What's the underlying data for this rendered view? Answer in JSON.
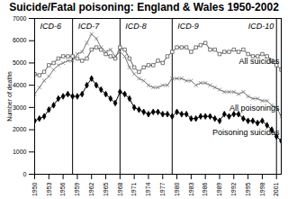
{
  "chart_data": {
    "type": "line",
    "title": "Suicide/Fatal poisoning: England & Wales 1950-2002",
    "y_label": "Number of deaths",
    "x": [
      1950,
      1951,
      1952,
      1953,
      1954,
      1955,
      1956,
      1957,
      1958,
      1959,
      1960,
      1961,
      1962,
      1963,
      1964,
      1965,
      1966,
      1967,
      1968,
      1969,
      1970,
      1971,
      1972,
      1973,
      1974,
      1975,
      1976,
      1977,
      1978,
      1979,
      1980,
      1981,
      1982,
      1983,
      1984,
      1985,
      1986,
      1987,
      1988,
      1989,
      1990,
      1991,
      1992,
      1993,
      1994,
      1995,
      1996,
      1997,
      1998,
      1999,
      2000,
      2001,
      2002
    ],
    "series": [
      {
        "name": "All suicides",
        "color": "#555555",
        "marker": "open square",
        "values": [
          4500,
          4450,
          4600,
          4900,
          5000,
          5200,
          5300,
          5300,
          5300,
          5200,
          5100,
          5200,
          5600,
          5700,
          5600,
          5400,
          5300,
          5200,
          5700,
          5600,
          5200,
          4800,
          4600,
          4800,
          4900,
          4900,
          5100,
          5000,
          5300,
          5500,
          5700,
          5700,
          5700,
          5500,
          5700,
          5800,
          5900,
          5600,
          5600,
          5400,
          5500,
          5500,
          5600,
          5500,
          5600,
          5400,
          5300,
          5300,
          5400,
          5300,
          5100,
          4900,
          4700
        ]
      },
      {
        "name": "All poisonings",
        "color": "#777777",
        "marker": "x",
        "values": [
          3600,
          3900,
          4200,
          4400,
          4700,
          4900,
          5000,
          5100,
          5100,
          5400,
          5500,
          5900,
          6300,
          6100,
          5700,
          5500,
          5600,
          5300,
          5500,
          5300,
          4800,
          4500,
          4300,
          4200,
          4000,
          3900,
          3900,
          4000,
          4000,
          4300,
          4300,
          4300,
          4200,
          4200,
          4000,
          4100,
          4100,
          4000,
          3900,
          3800,
          3700,
          3700,
          3700,
          3600,
          3700,
          3500,
          3400,
          3400,
          3300,
          3300,
          3100,
          3000,
          2600
        ]
      },
      {
        "name": "Poisoning suicides",
        "color": "#000000",
        "marker": "diamond",
        "values": [
          2400,
          2500,
          2600,
          2900,
          3100,
          3400,
          3500,
          3600,
          3500,
          3500,
          3600,
          4000,
          4300,
          4000,
          3800,
          3600,
          3400,
          3200,
          3700,
          3600,
          3400,
          3000,
          2900,
          2800,
          2700,
          2800,
          2800,
          2700,
          2700,
          2600,
          2800,
          2700,
          2700,
          2500,
          2500,
          2600,
          2600,
          2600,
          2500,
          2400,
          2700,
          2600,
          2700,
          2700,
          2500,
          2400,
          2400,
          2300,
          2400,
          2200,
          2000,
          1700,
          1500
        ]
      }
    ],
    "annotations": [
      {
        "text": "ICD-6",
        "x": 1950
      },
      {
        "text": "ICD-7",
        "x": 1958
      },
      {
        "text": "ICD-8",
        "x": 1968
      },
      {
        "text": "ICD-9",
        "x": 1979
      },
      {
        "text": "ICD-10",
        "x": 2001
      }
    ],
    "xlim": [
      1950,
      2002
    ],
    "xticks": [
      1950,
      1953,
      1956,
      1959,
      1962,
      1965,
      1968,
      1971,
      1974,
      1977,
      1980,
      1983,
      1986,
      1989,
      1992,
      1995,
      1998,
      2001
    ],
    "ylim": [
      0,
      7000
    ],
    "yticks": [
      0,
      1000,
      2000,
      3000,
      4000,
      5000,
      6000,
      7000
    ],
    "grid": false
  }
}
